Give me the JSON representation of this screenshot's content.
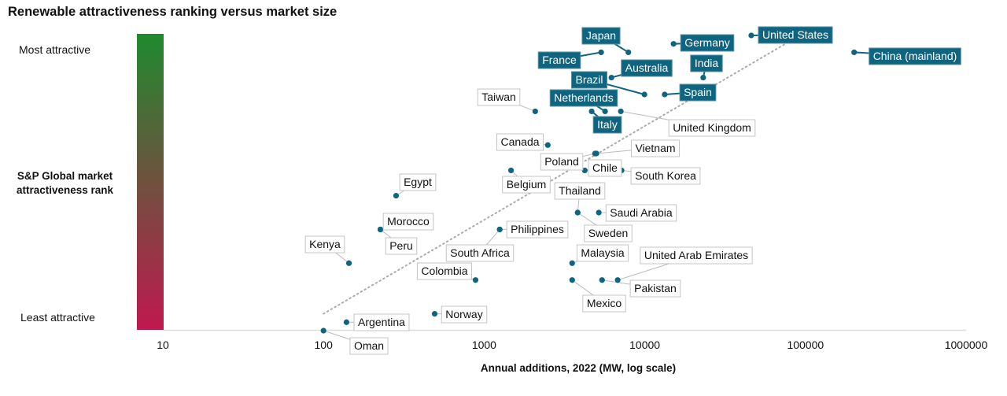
{
  "chart_data": {
    "type": "scatter",
    "title": "Renewable attractiveness ranking versus market size",
    "xlabel": "Annual additions, 2022 (MW, log scale)",
    "ylabel": "S&P Global market attractiveness rank",
    "y_top_label": "Most attractive",
    "y_bottom_label": "Least attractive",
    "x_scale": "log",
    "xlim": [
      10,
      1000000
    ],
    "x_ticks": [
      "10",
      "100",
      "1000",
      "10000",
      "100000",
      "1000000"
    ],
    "y_rank_range": [
      1,
      36
    ],
    "grid": false,
    "colors": {
      "point": "#0f6480",
      "highlight_label_bg": "#0f6480",
      "gradient_top": "#1f8a2e",
      "gradient_bottom": "#c0184f",
      "trend": "#aaaaaa"
    },
    "trend_line": {
      "style": "dotted",
      "from": {
        "x": 100,
        "rank": 34
      },
      "to": {
        "x": 75000,
        "rank": 2
      }
    },
    "points": [
      {
        "label": "United States",
        "x": 46000,
        "rank": 1,
        "highlight": true
      },
      {
        "label": "Germany",
        "x": 15100,
        "rank": 2,
        "highlight": true
      },
      {
        "label": "China (mainland)",
        "x": 201000,
        "rank": 3,
        "highlight": true
      },
      {
        "label": "Japan",
        "x": 7900,
        "rank": 3,
        "highlight": true
      },
      {
        "label": "France",
        "x": 5350,
        "rank": 3,
        "highlight": true
      },
      {
        "label": "Australia",
        "x": 6200,
        "rank": 6,
        "highlight": true
      },
      {
        "label": "India",
        "x": 23100,
        "rank": 6,
        "highlight": true
      },
      {
        "label": "Brazil",
        "x": 9950,
        "rank": 8,
        "highlight": true
      },
      {
        "label": "Spain",
        "x": 13300,
        "rank": 8,
        "highlight": true
      },
      {
        "label": "Netherlands",
        "x": 5660,
        "rank": 10,
        "highlight": true
      },
      {
        "label": "Italy",
        "x": 4670,
        "rank": 10,
        "highlight": true
      },
      {
        "label": "Taiwan",
        "x": 2080,
        "rank": 10,
        "highlight": false
      },
      {
        "label": "United Kingdom",
        "x": 7090,
        "rank": 10,
        "highlight": false
      },
      {
        "label": "Canada",
        "x": 2490,
        "rank": 14,
        "highlight": false
      },
      {
        "label": "Vietnam",
        "x": 5000,
        "rank": 15,
        "highlight": false
      },
      {
        "label": "Poland",
        "x": 4900,
        "rank": 15,
        "highlight": false
      },
      {
        "label": "Chile",
        "x": 4230,
        "rank": 17,
        "highlight": false
      },
      {
        "label": "South Korea",
        "x": 7170,
        "rank": 17,
        "highlight": false
      },
      {
        "label": "Belgium",
        "x": 1470,
        "rank": 17,
        "highlight": false
      },
      {
        "label": "Egypt",
        "x": 283,
        "rank": 20,
        "highlight": false
      },
      {
        "label": "Thailand",
        "x": 3820,
        "rank": 22,
        "highlight": false
      },
      {
        "label": "Saudi Arabia",
        "x": 5170,
        "rank": 22,
        "highlight": false
      },
      {
        "label": "Sweden",
        "x": 3820,
        "rank": 22,
        "highlight": false
      },
      {
        "label": "Morocco",
        "x": 226,
        "rank": 24,
        "highlight": false
      },
      {
        "label": "Peru",
        "x": 226,
        "rank": 24,
        "highlight": false
      },
      {
        "label": "Philippines",
        "x": 1250,
        "rank": 24,
        "highlight": false
      },
      {
        "label": "South Africa",
        "x": 1250,
        "rank": 24,
        "highlight": false
      },
      {
        "label": "Kenya",
        "x": 144,
        "rank": 28,
        "highlight": false
      },
      {
        "label": "Malaysia",
        "x": 3530,
        "rank": 28,
        "highlight": false
      },
      {
        "label": "United Arab Emirates",
        "x": 6780,
        "rank": 30,
        "highlight": false
      },
      {
        "label": "Colombia",
        "x": 884,
        "rank": 30,
        "highlight": false
      },
      {
        "label": "Pakistan",
        "x": 5420,
        "rank": 30,
        "highlight": false
      },
      {
        "label": "Mexico",
        "x": 3530,
        "rank": 30,
        "highlight": false
      },
      {
        "label": "Norway",
        "x": 492,
        "rank": 34,
        "highlight": false
      },
      {
        "label": "Argentina",
        "x": 139,
        "rank": 35,
        "highlight": false
      },
      {
        "label": "Oman",
        "x": 100,
        "rank": 36,
        "highlight": false
      }
    ]
  }
}
